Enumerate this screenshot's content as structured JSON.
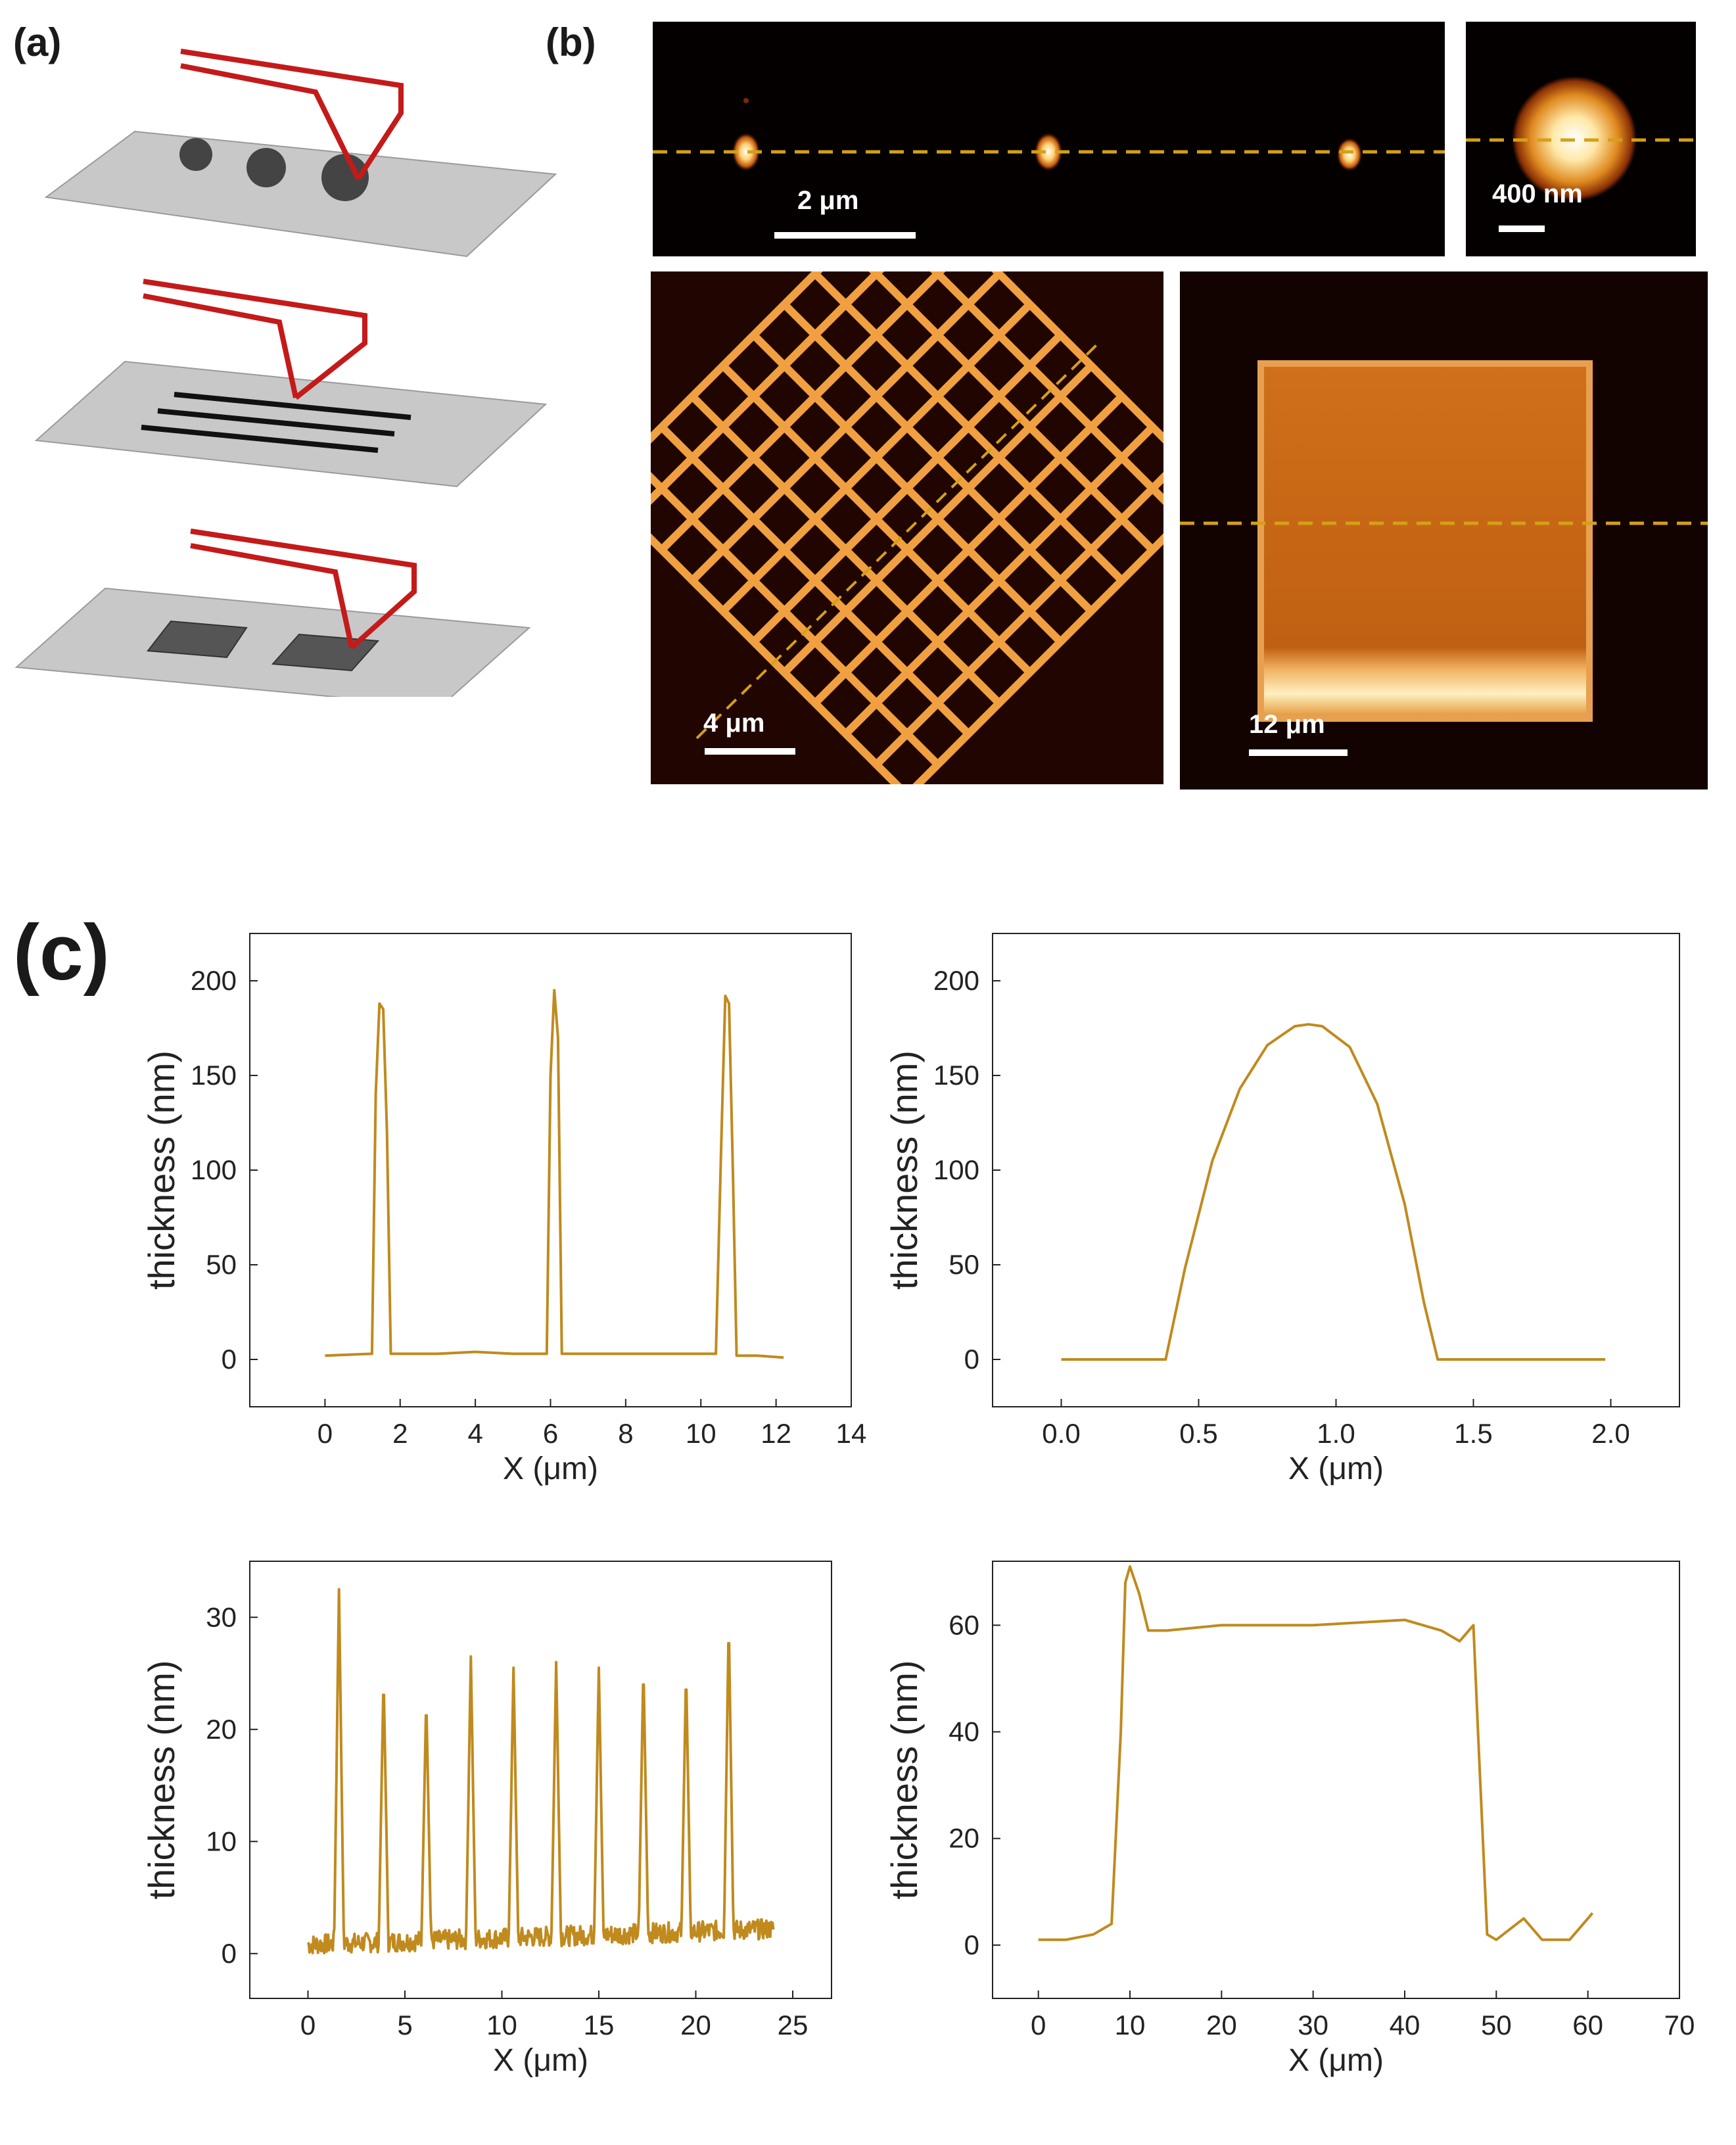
{
  "panels": {
    "a": "(a)",
    "b": "(b)",
    "c": "(c)"
  },
  "afm_images": {
    "dots_scale": "2 μm",
    "single_dot_scale": "400 nm",
    "grid_scale": "4 μm",
    "square_scale": "12 μm"
  },
  "colors": {
    "cantilever": "#c41a1a",
    "substrate": "#c8c8c8",
    "profile_line": "#c08a1e",
    "dashed_cut": "#d4a017"
  },
  "chart_data": [
    {
      "type": "line",
      "xlabel": "X (μm)",
      "ylabel": "thickness (nm)",
      "xlim": [
        -2,
        14
      ],
      "ylim": [
        -25,
        225
      ],
      "xticks": [
        0,
        2,
        4,
        6,
        8,
        10,
        12,
        14
      ],
      "yticks": [
        0,
        50,
        100,
        150,
        200
      ],
      "series": [
        {
          "x": [
            0,
            1.25,
            1.35,
            1.45,
            1.55,
            1.65,
            1.75,
            3,
            4,
            5,
            5.9,
            6.0,
            6.1,
            6.2,
            6.3,
            8,
            10.4,
            10.55,
            10.65,
            10.75,
            10.85,
            10.95,
            11.5,
            12.2
          ],
          "y": [
            2,
            3,
            140,
            188,
            185,
            120,
            3,
            3,
            4,
            3,
            3,
            150,
            195,
            170,
            3,
            3,
            3,
            120,
            192,
            188,
            100,
            2,
            2,
            1
          ]
        }
      ]
    },
    {
      "type": "line",
      "xlabel": "X (μm)",
      "ylabel": "thickness (nm)",
      "xlim": [
        -0.25,
        2.25
      ],
      "ylim": [
        -25,
        225
      ],
      "xticks": [
        0.0,
        0.5,
        1.0,
        1.5,
        2.0
      ],
      "yticks": [
        0,
        50,
        100,
        150,
        200
      ],
      "series": [
        {
          "x": [
            0,
            0.38,
            0.45,
            0.55,
            0.65,
            0.75,
            0.85,
            0.9,
            0.95,
            1.05,
            1.15,
            1.25,
            1.32,
            1.37,
            1.6,
            1.98
          ],
          "y": [
            0,
            0,
            48,
            105,
            143,
            166,
            176,
            177,
            176,
            165,
            135,
            82,
            30,
            0,
            0,
            0
          ]
        }
      ]
    },
    {
      "type": "line",
      "xlabel": "X (μm)",
      "ylabel": "thickness (nm)",
      "xlim": [
        -3,
        27
      ],
      "ylim": [
        -4,
        35
      ],
      "xticks": [
        0,
        5,
        10,
        15,
        20,
        25
      ],
      "yticks": [
        0,
        10,
        20,
        30
      ],
      "peaks_x": [
        1.6,
        3.9,
        6.1,
        8.4,
        10.6,
        12.8,
        15.0,
        17.3,
        19.5,
        21.7
      ],
      "peaks_y": [
        31.5,
        24,
        22,
        25.5,
        24.5,
        25,
        24.5,
        25,
        24.5,
        29
      ],
      "series": [
        {
          "x": [
            0,
            24
          ],
          "y": [
            0.5,
            2
          ]
        }
      ]
    },
    {
      "type": "line",
      "xlabel": "X (μm)",
      "ylabel": "thickness (nm)",
      "xlim": [
        -5,
        70
      ],
      "ylim": [
        -10,
        72
      ],
      "xticks": [
        0,
        10,
        20,
        30,
        40,
        50,
        60,
        70
      ],
      "yticks": [
        0,
        20,
        40,
        60
      ],
      "series": [
        {
          "x": [
            0,
            3,
            6,
            8,
            9,
            9.5,
            10,
            11,
            12,
            14,
            20,
            30,
            40,
            44,
            46,
            47.5,
            48,
            49,
            50,
            53,
            55,
            58,
            60,
            60.5
          ],
          "y": [
            1,
            1,
            2,
            4,
            40,
            68,
            71,
            66,
            59,
            59,
            60,
            60,
            61,
            59,
            57,
            60,
            40,
            2,
            1,
            5,
            1,
            1,
            5,
            6
          ]
        }
      ]
    }
  ]
}
